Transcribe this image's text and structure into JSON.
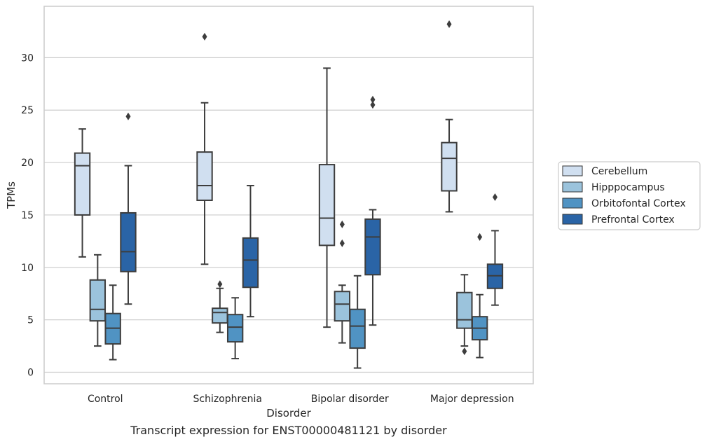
{
  "chart_data": {
    "type": "box",
    "xlabel": "Disorder",
    "ylabel": "TPMs",
    "caption": "Transcript expression for ENST00000481121 by disorder",
    "categories": [
      "Control",
      "Schizophrenia",
      "Bipolar disorder",
      "Major depression"
    ],
    "ylim": [
      -1.1,
      34.9
    ],
    "yticks": [
      0,
      5,
      10,
      15,
      20,
      25,
      30
    ],
    "grid": "horizontal",
    "legend_position": "right",
    "series": [
      {
        "name": "Cerebellum",
        "color": "#d0dff0",
        "boxes": [
          {
            "whisker_low": 11.0,
            "q1": 15.0,
            "median": 19.7,
            "q3": 20.9,
            "whisker_high": 23.2,
            "outliers": []
          },
          {
            "whisker_low": 10.3,
            "q1": 16.4,
            "median": 17.8,
            "q3": 21.0,
            "whisker_high": 25.7,
            "outliers": [
              32.0
            ]
          },
          {
            "whisker_low": 4.3,
            "q1": 12.1,
            "median": 14.7,
            "q3": 19.8,
            "whisker_high": 29.0,
            "outliers": []
          },
          {
            "whisker_low": 15.3,
            "q1": 17.3,
            "median": 20.4,
            "q3": 21.9,
            "whisker_high": 24.1,
            "outliers": [
              33.2
            ]
          }
        ]
      },
      {
        "name": "Hipppocampus",
        "color": "#9bc3dc",
        "boxes": [
          {
            "whisker_low": 2.5,
            "q1": 4.9,
            "median": 6.0,
            "q3": 8.8,
            "whisker_high": 11.2,
            "outliers": []
          },
          {
            "whisker_low": 3.8,
            "q1": 4.7,
            "median": 5.7,
            "q3": 6.1,
            "whisker_high": 8.0,
            "outliers": [
              8.4
            ]
          },
          {
            "whisker_low": 2.8,
            "q1": 4.9,
            "median": 6.5,
            "q3": 7.7,
            "whisker_high": 8.3,
            "outliers": [
              14.1,
              12.3
            ]
          },
          {
            "whisker_low": 2.5,
            "q1": 4.2,
            "median": 5.0,
            "q3": 7.6,
            "whisker_high": 9.3,
            "outliers": [
              2.0
            ]
          }
        ]
      },
      {
        "name": "Orbitofontal Cortex",
        "color": "#5093c3",
        "boxes": [
          {
            "whisker_low": 1.2,
            "q1": 2.7,
            "median": 4.2,
            "q3": 5.6,
            "whisker_high": 8.3,
            "outliers": []
          },
          {
            "whisker_low": 1.3,
            "q1": 2.9,
            "median": 4.3,
            "q3": 5.5,
            "whisker_high": 7.1,
            "outliers": []
          },
          {
            "whisker_low": 0.4,
            "q1": 2.3,
            "median": 4.4,
            "q3": 6.0,
            "whisker_high": 9.2,
            "outliers": []
          },
          {
            "whisker_low": 1.4,
            "q1": 3.1,
            "median": 4.2,
            "q3": 5.3,
            "whisker_high": 7.4,
            "outliers": [
              12.9
            ]
          }
        ]
      },
      {
        "name": "Prefrontal Cortex",
        "color": "#2a64a6",
        "boxes": [
          {
            "whisker_low": 6.5,
            "q1": 9.6,
            "median": 11.5,
            "q3": 15.2,
            "whisker_high": 19.7,
            "outliers": [
              24.4
            ]
          },
          {
            "whisker_low": 5.3,
            "q1": 8.1,
            "median": 10.7,
            "q3": 12.8,
            "whisker_high": 17.8,
            "outliers": []
          },
          {
            "whisker_low": 4.5,
            "q1": 9.3,
            "median": 12.9,
            "q3": 14.6,
            "whisker_high": 15.5,
            "outliers": [
              26.0,
              25.5
            ]
          },
          {
            "whisker_low": 6.4,
            "q1": 8.0,
            "median": 9.2,
            "q3": 10.3,
            "whisker_high": 13.5,
            "outliers": [
              16.7
            ]
          }
        ]
      }
    ]
  }
}
